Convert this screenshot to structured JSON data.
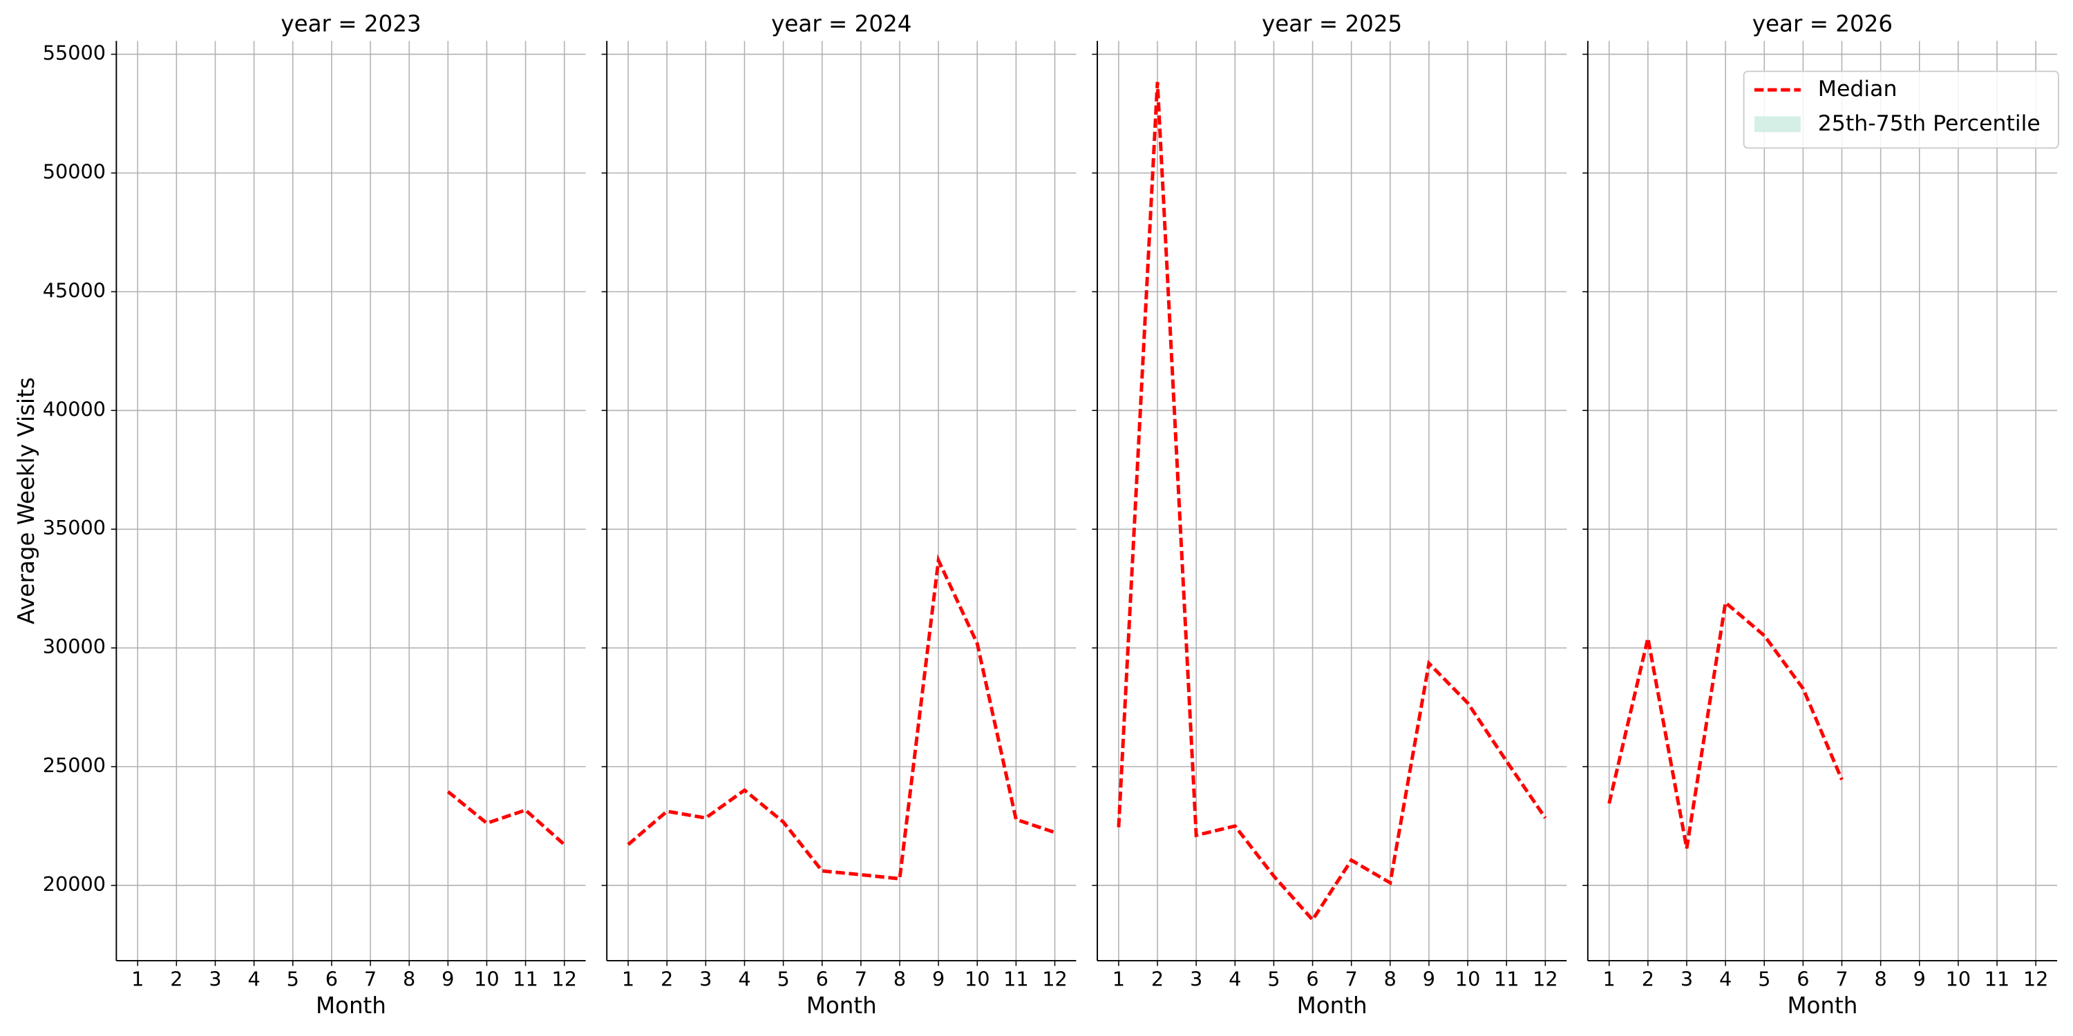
{
  "chart_data": [
    {
      "type": "line",
      "title": "year = 2023",
      "ylabel": "Average Weekly Visits",
      "xlabel": "Month",
      "x": [
        1,
        2,
        3,
        4,
        5,
        6,
        7,
        8,
        9,
        10,
        11,
        12
      ],
      "series": [
        {
          "color": "#ff0000",
          "values": [
            null,
            null,
            null,
            null,
            null,
            null,
            null,
            null,
            23950,
            22620,
            23170,
            21720
          ]
        }
      ],
      "xlim": [
        0.45,
        12.55
      ],
      "xticks": [
        1,
        2,
        3,
        4,
        5,
        6,
        7,
        8,
        9,
        10,
        11,
        12
      ],
      "ylim": [
        16830,
        55560
      ],
      "yticks": [
        20000,
        25000,
        30000,
        35000,
        40000,
        45000,
        50000,
        55000
      ],
      "grid": true
    },
    {
      "type": "line",
      "title": "year = 2024",
      "xlabel": "Month",
      "x": [
        1,
        2,
        3,
        4,
        5,
        6,
        7,
        8,
        9,
        10,
        11,
        12
      ],
      "series": [
        {
          "color": "#ff0000",
          "values": [
            21720,
            23120,
            22840,
            24010,
            22670,
            20610,
            20450,
            20280,
            33690,
            30180,
            22780,
            22230
          ]
        }
      ],
      "xlim": [
        0.45,
        12.55
      ],
      "xticks": [
        1,
        2,
        3,
        4,
        5,
        6,
        7,
        8,
        9,
        10,
        11,
        12
      ],
      "ylim": [
        16830,
        55560
      ],
      "yticks": [
        20000,
        25000,
        30000,
        35000,
        40000,
        45000,
        50000,
        55000
      ],
      "grid": true
    },
    {
      "type": "line",
      "title": "year = 2025",
      "xlabel": "Month",
      "x": [
        1,
        2,
        3,
        4,
        5,
        6,
        7,
        8,
        9,
        10,
        11,
        12
      ],
      "series": [
        {
          "color": "#ff0000",
          "values": [
            22450,
            53830,
            22110,
            22500,
            20390,
            18550,
            21060,
            20110,
            29350,
            27680,
            25230,
            22840
          ]
        }
      ],
      "xlim": [
        0.45,
        12.55
      ],
      "xticks": [
        1,
        2,
        3,
        4,
        5,
        6,
        7,
        8,
        9,
        10,
        11,
        12
      ],
      "ylim": [
        16830,
        55560
      ],
      "yticks": [
        20000,
        25000,
        30000,
        35000,
        40000,
        45000,
        50000,
        55000
      ],
      "grid": true
    },
    {
      "type": "line",
      "title": "year = 2026",
      "xlabel": "Month",
      "x": [
        1,
        2,
        3,
        4,
        5,
        6,
        7,
        8,
        9,
        10,
        11,
        12
      ],
      "series": [
        {
          "name": "Median",
          "color": "#ff0000",
          "values": [
            23450,
            30410,
            21560,
            31910,
            30520,
            28290,
            24450,
            null,
            null,
            null,
            null,
            null
          ]
        },
        {
          "name": "25th-75th Percentile",
          "color": "#d6efe6"
        }
      ],
      "xlim": [
        0.45,
        12.55
      ],
      "xticks": [
        1,
        2,
        3,
        4,
        5,
        6,
        7,
        8,
        9,
        10,
        11,
        12
      ],
      "ylim": [
        16830,
        55560
      ],
      "yticks": [
        20000,
        25000,
        30000,
        35000,
        40000,
        45000,
        50000,
        55000
      ],
      "grid": true,
      "legend": "upper right"
    }
  ]
}
